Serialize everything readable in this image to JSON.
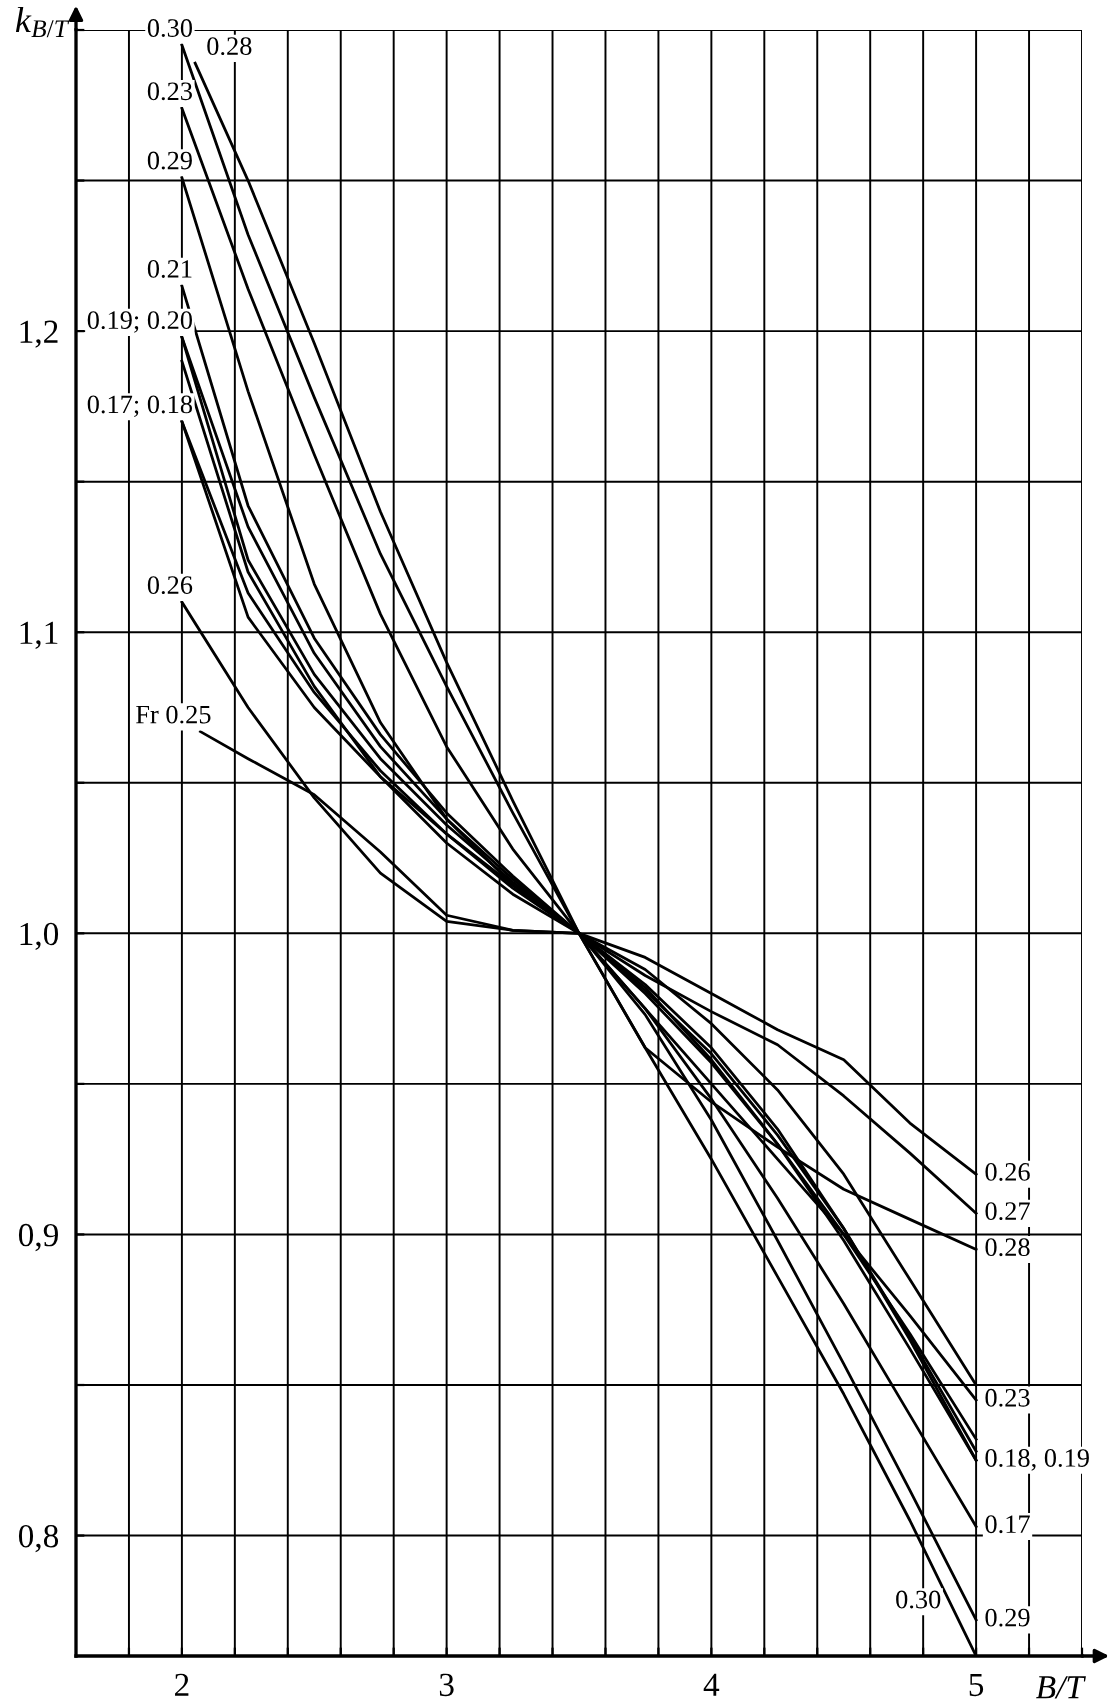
{
  "chart_data": {
    "type": "line",
    "xlabel": "B/T",
    "ylabel": "k$_{B/T}$",
    "x": [
      2.0,
      2.25,
      2.5,
      2.75,
      3.0,
      3.25,
      3.5,
      3.75,
      4.0,
      4.25,
      4.5,
      4.75,
      5.0
    ],
    "series": [
      {
        "color": "#000000",
        "values": [
          1.295,
          1.232,
          1.178,
          1.126,
          1.082,
          1.04,
          1.0,
          0.962,
          0.925,
          0.886,
          0.847,
          0.805,
          0.76
        ]
      },
      {
        "color": "#000000",
        "x": [
          2.05,
          2.25,
          2.5,
          2.75,
          3.0,
          3.25,
          3.5,
          3.75,
          4.0,
          4.25,
          4.5,
          4.75,
          5.0
        ],
        "values": [
          1.289,
          1.25,
          1.196,
          1.14,
          1.09,
          1.044,
          1.0,
          0.962,
          0.944,
          0.929,
          0.915,
          0.905,
          0.895
        ]
      },
      {
        "color": "#000000",
        "values": [
          1.251,
          1.18,
          1.116,
          1.07,
          1.038,
          1.016,
          1.0,
          0.973,
          0.938,
          0.898,
          0.857,
          0.815,
          0.772
        ]
      },
      {
        "color": "#000000",
        "values": [
          1.274,
          1.214,
          1.159,
          1.106,
          1.062,
          1.028,
          1.0,
          0.975,
          0.95,
          0.925,
          0.9,
          0.873,
          0.845
        ]
      },
      {
        "color": "#000000",
        "values": [
          1.215,
          1.142,
          1.098,
          1.066,
          1.04,
          1.019,
          1.0,
          0.98,
          0.957,
          0.93,
          0.9,
          0.867,
          0.832
        ]
      },
      {
        "color": "#000000",
        "values": [
          1.198,
          1.135,
          1.093,
          1.062,
          1.038,
          1.018,
          1.0,
          0.981,
          0.96,
          0.933,
          0.902,
          0.866,
          0.828
        ]
      },
      {
        "color": "#000000",
        "values": [
          1.198,
          1.124,
          1.086,
          1.058,
          1.036,
          1.017,
          1.0,
          0.983,
          0.962,
          0.935,
          0.902,
          0.865,
          0.825
        ]
      },
      {
        "color": "#000000",
        "values": [
          1.17,
          1.113,
          1.08,
          1.054,
          1.033,
          1.015,
          1.0,
          0.982,
          0.958,
          0.93,
          0.898,
          0.862,
          0.825
        ]
      },
      {
        "color": "#000000",
        "values": [
          1.17,
          1.105,
          1.075,
          1.052,
          1.033,
          1.016,
          1.0,
          0.975,
          0.945,
          0.912,
          0.877,
          0.84,
          0.803
        ]
      },
      {
        "color": "#000000",
        "values": [
          1.19,
          1.12,
          1.082,
          1.052,
          1.03,
          1.013,
          1.0,
          0.986,
          0.974,
          0.963,
          0.946,
          0.927,
          0.907
        ]
      },
      {
        "color": "#000000",
        "values": [
          1.11,
          1.075,
          1.045,
          1.02,
          1.004,
          1.001,
          1.0,
          0.992,
          0.98,
          0.968,
          0.958,
          0.937,
          0.92
        ]
      },
      {
        "color": "#000000",
        "x": [
          2.07,
          2.25,
          2.5,
          2.75,
          3.0,
          3.25,
          3.5,
          3.75,
          4.0,
          4.25,
          4.5,
          4.75,
          5.0
        ],
        "values": [
          1.067,
          1.058,
          1.046,
          1.027,
          1.006,
          1.001,
          1.0,
          0.988,
          0.97,
          0.948,
          0.92,
          0.885,
          0.85
        ]
      }
    ],
    "xlim": [
      1.6,
      5.4
    ],
    "ylim": [
      0.76,
      1.3
    ],
    "xticks": [
      {
        "value": 1.8,
        "label": null
      },
      2,
      {
        "value": 2.2,
        "label": null
      },
      {
        "value": 2.4,
        "label": null
      },
      {
        "value": 2.6,
        "label": null
      },
      {
        "value": 2.8,
        "label": null
      },
      3,
      {
        "value": 3.2,
        "label": null
      },
      {
        "value": 3.4,
        "label": null
      },
      {
        "value": 3.6,
        "label": null
      },
      {
        "value": 3.8,
        "label": null
      },
      4,
      {
        "value": 4.2,
        "label": null
      },
      {
        "value": 4.4,
        "label": null
      },
      {
        "value": 4.6,
        "label": null
      },
      {
        "value": 4.8,
        "label": null
      },
      5,
      {
        "value": 5.2,
        "label": null
      },
      {
        "value": 5.4,
        "label": null
      }
    ],
    "yticks": [
      {
        "value": 0.8,
        "label": "0,8"
      },
      {
        "value": 0.85,
        "label": null
      },
      {
        "value": 0.9,
        "label": "0,9"
      },
      {
        "value": 0.95,
        "label": null
      },
      {
        "value": 1.0,
        "label": "1,0"
      },
      {
        "value": 1.05,
        "label": null
      },
      {
        "value": 1.1,
        "label": "1,1"
      },
      {
        "value": 1.15,
        "label": null
      },
      {
        "value": 1.2,
        "label": "1,2"
      },
      {
        "value": 1.25,
        "label": null
      },
      {
        "value": 1.3,
        "label": null
      }
    ],
    "grid": true,
    "line_style": "solid",
    "annotations": [
      {
        "text": "0.30",
        "x": 2.0,
        "y": 1.295
      },
      {
        "text": "0.28",
        "x": 2.05,
        "y": 1.289
      },
      {
        "text": "0.23",
        "x": 2.0,
        "y": 1.274
      },
      {
        "text": "0.29",
        "x": 2.0,
        "y": 1.251
      },
      {
        "text": "0.21",
        "x": 2.0,
        "y": 1.215
      },
      {
        "text": "0.19; 0.20",
        "x": 2.0,
        "y": 1.198
      },
      {
        "text": "0.17; 0.18",
        "x": 2.0,
        "y": 1.17
      },
      {
        "text": "0.26",
        "x": 2.0,
        "y": 1.11
      },
      {
        "text": "Fr 0.25",
        "x": 2.07,
        "y": 1.067
      },
      {
        "text": "0.26",
        "x": 5.0,
        "y": 0.92
      },
      {
        "text": "0.27",
        "x": 5.0,
        "y": 0.907
      },
      {
        "text": "0.28",
        "x": 5.0,
        "y": 0.895
      },
      {
        "text": "0.23",
        "x": 5.0,
        "y": 0.845
      },
      {
        "text": "0.18, 0.19",
        "x": 5.0,
        "y": 0.825
      },
      {
        "text": "0.17",
        "x": 5.0,
        "y": 0.803
      },
      {
        "text": "0.29",
        "x": 5.0,
        "y": 0.772
      },
      {
        "text": "0.30",
        "x": 4.9,
        "y": 0.778
      }
    ]
  }
}
